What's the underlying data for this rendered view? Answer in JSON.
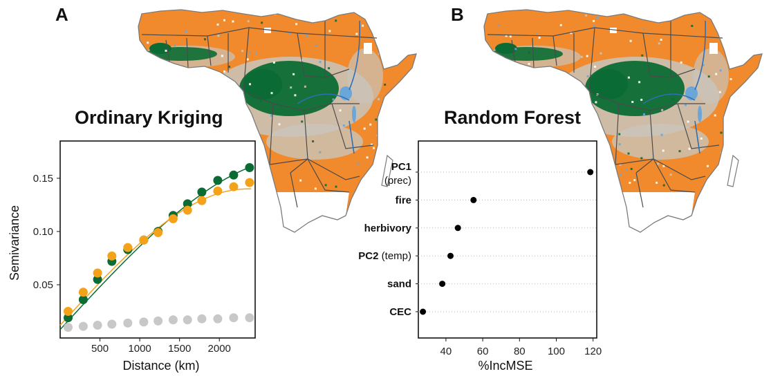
{
  "panels": {
    "a": {
      "letter": "A",
      "title": "Ordinary Kriging"
    },
    "b": {
      "letter": "B",
      "title": "Random Forest"
    }
  },
  "colors": {
    "forest": "#0b6b34",
    "savanna": "#f08a2c",
    "water": "#6aa6d8",
    "transition": "#c9c4bc",
    "borders": "#4a4a4a",
    "rivers": "#2f6fb5"
  },
  "chart_data": [
    {
      "type": "scatter",
      "panel": "A",
      "xlabel": "Distance (km)",
      "ylabel": "Semivariance",
      "xlim": [
        0,
        2450
      ],
      "ylim": [
        0,
        0.185
      ],
      "xticks": [
        500,
        1000,
        1500,
        2000
      ],
      "yticks": [
        0.05,
        0.1,
        0.15
      ],
      "ytick_labels": [
        "0.05",
        "0.10",
        "0.15"
      ],
      "grid": false,
      "series": [
        {
          "color": "#0b6b34",
          "x": [
            100,
            290,
            470,
            650,
            850,
            1050,
            1230,
            1420,
            1600,
            1780,
            1980,
            2180,
            2380
          ],
          "y": [
            0.019,
            0.036,
            0.055,
            0.072,
            0.083,
            0.092,
            0.1,
            0.115,
            0.126,
            0.137,
            0.148,
            0.153,
            0.16
          ],
          "fit": {
            "nugget": 0.008,
            "sill": 0.17,
            "range": 3000
          }
        },
        {
          "color": "#f5a21b",
          "x": [
            100,
            290,
            470,
            650,
            850,
            1050,
            1230,
            1420,
            1600,
            1780,
            1980,
            2180,
            2380
          ],
          "y": [
            0.025,
            0.043,
            0.061,
            0.077,
            0.085,
            0.092,
            0.099,
            0.112,
            0.12,
            0.129,
            0.138,
            0.142,
            0.146
          ],
          "fit": {
            "nugget": 0.012,
            "sill": 0.14,
            "range": 2350
          }
        },
        {
          "color": "#c8c8c8",
          "x": [
            100,
            290,
            470,
            650,
            850,
            1050,
            1230,
            1420,
            1600,
            1780,
            1980,
            2180,
            2380
          ],
          "y": [
            0.01,
            0.011,
            0.012,
            0.013,
            0.014,
            0.015,
            0.016,
            0.017,
            0.017,
            0.018,
            0.018,
            0.019,
            0.019
          ]
        }
      ]
    },
    {
      "type": "scatter",
      "panel": "B",
      "xlabel": "%IncMSE",
      "xlim": [
        25,
        122
      ],
      "xticks": [
        40,
        60,
        80,
        100,
        120
      ],
      "grid": "horizontal-dotted",
      "categories": [
        {
          "main": "PC1",
          "sub": "(prec)",
          "value": 118.5
        },
        {
          "main": "fire",
          "sub": "",
          "value": 55
        },
        {
          "main": "herbivory",
          "sub": "",
          "value": 46.5
        },
        {
          "main": "PC2",
          "sub": "(temp)",
          "value": 42.5
        },
        {
          "main": "sand",
          "sub": "",
          "value": 38
        },
        {
          "main": "CEC",
          "sub": "",
          "value": 27.5
        }
      ]
    }
  ]
}
